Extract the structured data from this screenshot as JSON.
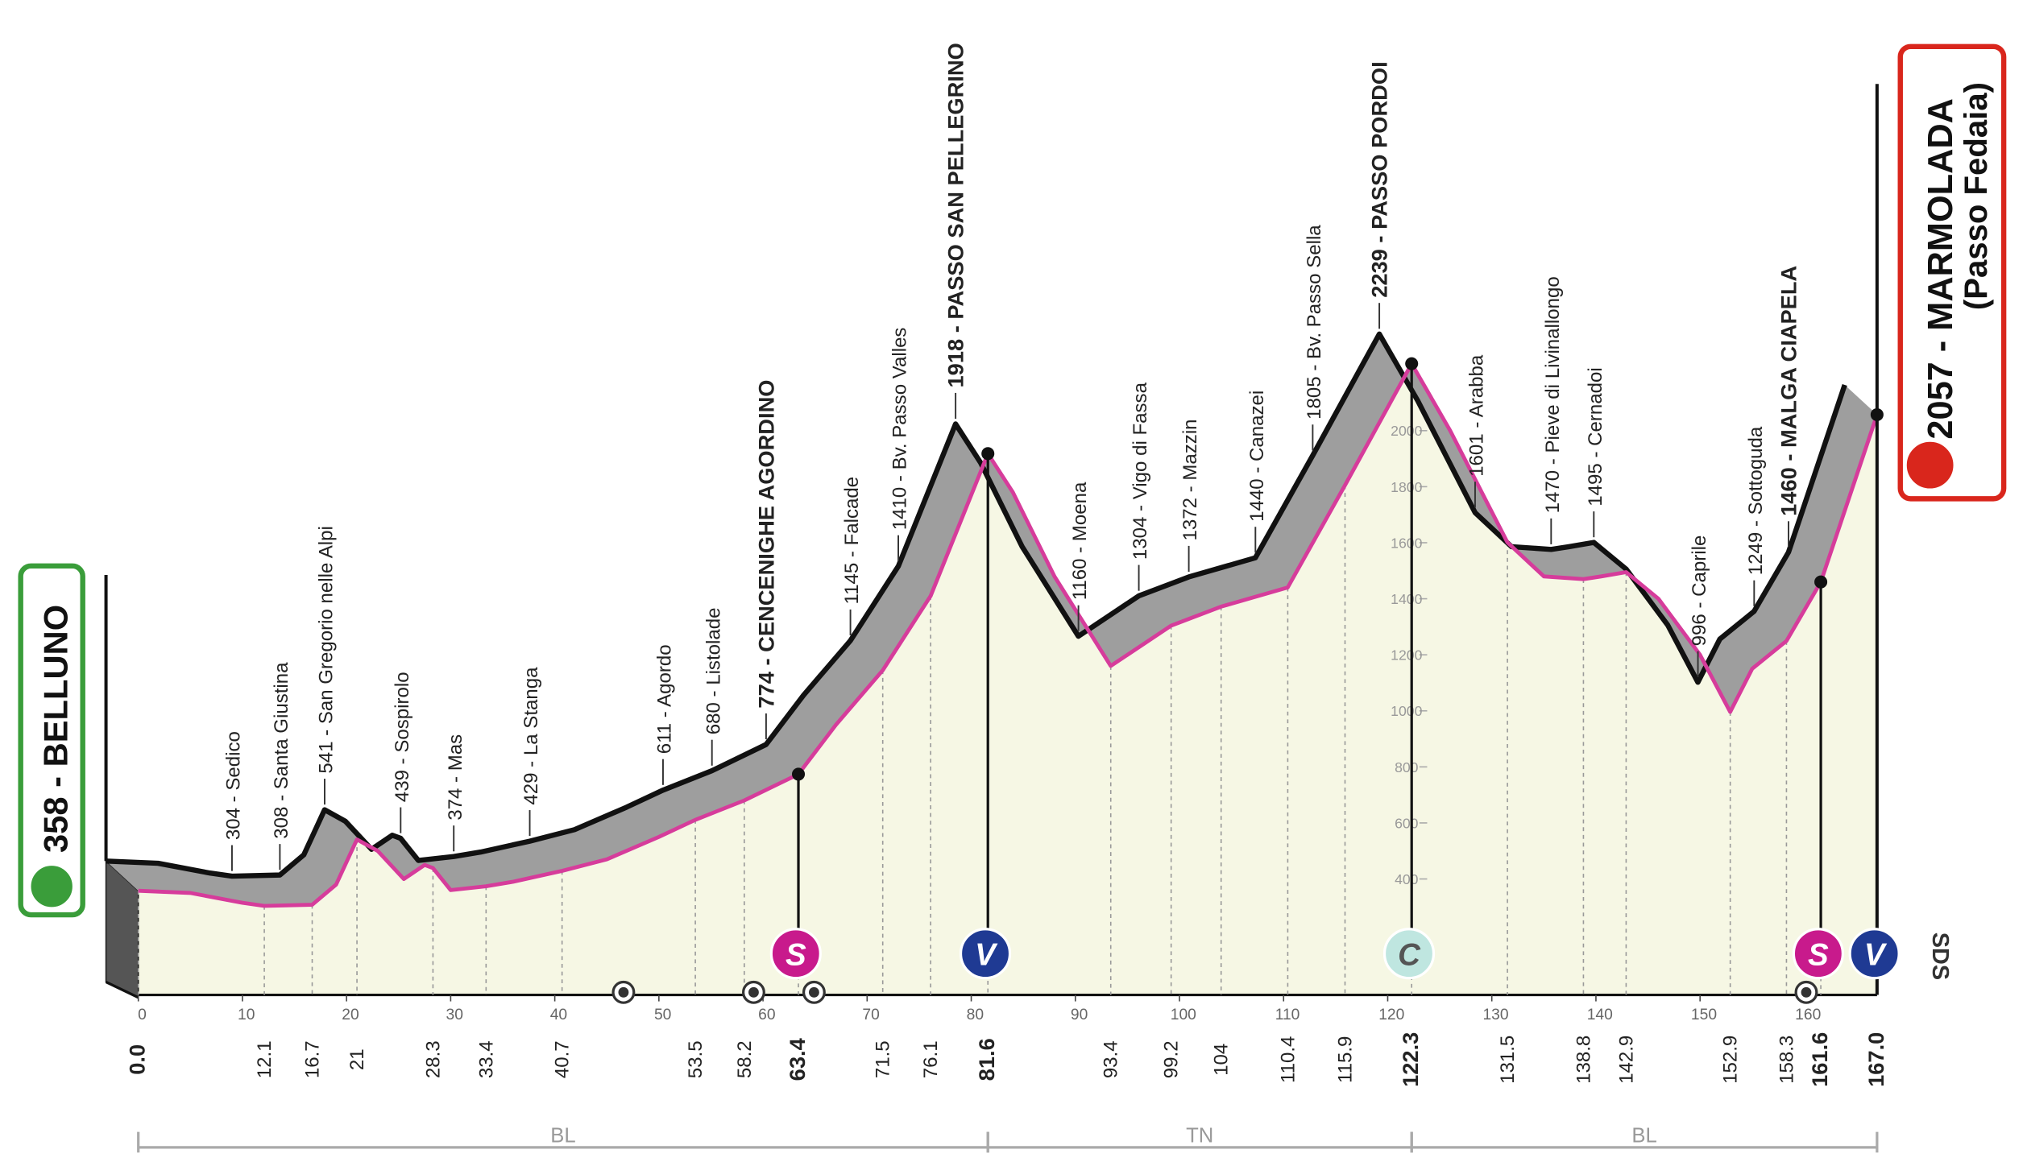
{
  "chart_data": {
    "type": "profile",
    "start": {
      "label": "358 - BELLUNO",
      "color": "#3a9d3a"
    },
    "finish": {
      "label": "2057 - MARMOLADA",
      "sublabel": "(Passo Fedaia)",
      "color": "#d9261c"
    },
    "xlim": [
      0,
      167
    ],
    "xticks": [
      0,
      10,
      20,
      30,
      40,
      50,
      60,
      70,
      80,
      90,
      100,
      110,
      120,
      130,
      140,
      150,
      160
    ],
    "ylim": [
      0,
      3500
    ],
    "yticks": [
      400,
      600,
      800,
      1000,
      1200,
      1400,
      1600,
      1800,
      2000
    ],
    "profile": {
      "km": [
        0,
        5,
        10,
        12.1,
        16.7,
        19,
        21.0,
        23,
        25.5,
        27.5,
        28.3,
        30,
        33.4,
        36,
        40.7,
        45,
        50,
        53.5,
        58.2,
        63.4,
        67,
        71.5,
        76.1,
        81.6,
        84,
        88,
        93.4,
        95,
        99.2,
        104.0,
        110.4,
        115.9,
        122.3,
        126,
        131.5,
        135,
        138.8,
        140.5,
        142.9,
        146,
        150,
        152.9,
        155,
        158.3,
        161.6,
        167.0
      ],
      "elevation": [
        358,
        350,
        315,
        304,
        308,
        380,
        541,
        500,
        400,
        450,
        439,
        360,
        374,
        390,
        429,
        470,
        550,
        611,
        680,
        774,
        950,
        1145,
        1410,
        1918,
        1780,
        1480,
        1160,
        1200,
        1304,
        1372,
        1440,
        1805,
        2239,
        2000,
        1601,
        1480,
        1470,
        1480,
        1495,
        1400,
        1200,
        996,
        1150,
        1249,
        1460,
        2057
      ],
      "color": "#d63c9b",
      "surface_color": "#9e9e9e",
      "ground_color": "#f6f7e4"
    },
    "stations": [
      {
        "km": {
          "value": 0,
          "label": "0.0"
        },
        "bold": true
      },
      {
        "km": 12.1,
        "name": "304 - Sedico"
      },
      {
        "km": 16.7,
        "name": "308 - Santa Giustina"
      },
      {
        "km": 21.0,
        "name": "541 - San Gregorio nelle Alpi"
      },
      {
        "km": 28.3,
        "name": "439 - Sospirolo"
      },
      {
        "km": 33.4,
        "name": "374 - Mas"
      },
      {
        "km": 40.7,
        "name": "429 - La Stanga"
      },
      {
        "km": 53.5,
        "name": "611 - Agordo"
      },
      {
        "km": 58.2,
        "name": "680 - Listolade"
      },
      {
        "km": 63.4,
        "name": "774 - CENCENIGHE AGORDINO",
        "bold": true
      },
      {
        "km": 71.5,
        "name": "1145 - Falcade"
      },
      {
        "km": 76.1,
        "name": "1410 - Bv. Passo Valles"
      },
      {
        "km": 81.6,
        "name": "1918 - PASSO SAN PELLEGRINO",
        "bold": true
      },
      {
        "km": 93.4,
        "name": "1160 - Moena"
      },
      {
        "km": 99.2,
        "name": "1304 - Vigo di Fassa"
      },
      {
        "km": 104.0,
        "name": "1372 - Mazzin"
      },
      {
        "km": 110.4,
        "name": "1440 - Canazei"
      },
      {
        "km": 115.9,
        "name": "1805 - Bv. Passo Sella"
      },
      {
        "km": 122.3,
        "name": "2239 - PASSO PORDOI",
        "bold": true
      },
      {
        "km": 131.5,
        "name": "1601 - Arabba"
      },
      {
        "km": 138.8,
        "name": "1470 - Pieve di Livinallongo"
      },
      {
        "km": 142.9,
        "name": "1495 - Cernadoi"
      },
      {
        "km": 152.9,
        "name": "996 - Caprile"
      },
      {
        "km": 158.3,
        "name": "1249 - Sottoguda"
      },
      {
        "km": 161.6,
        "name": "1460 - MALGA CIAPELA",
        "bold": true
      },
      {
        "km": {
          "value": 167.0,
          "label": "167.0"
        },
        "bold": true
      }
    ],
    "markers": [
      {
        "letter": "S",
        "km": 63.4,
        "color": "#c81a8c",
        "letter_color": "#ffffff"
      },
      {
        "letter": "V",
        "km": 81.6,
        "color": "#1f3a93",
        "letter_color": "#ffffff"
      },
      {
        "letter": "C",
        "km": 122.3,
        "color": "#bfe6e0",
        "letter_color": "#555555"
      },
      {
        "letter": "S",
        "km": 161.6,
        "color": "#c81a8c",
        "letter_color": "#ffffff"
      },
      {
        "letter": "V",
        "km": 167.0,
        "color": "#1f3a93",
        "letter_color": "#ffffff"
      }
    ],
    "tunnels": [
      46.6,
      59.1,
      64.9,
      160.2
    ],
    "regions": [
      {
        "name": "BL",
        "from": 0,
        "to": 81.6
      },
      {
        "name": "TN",
        "from": 81.6,
        "to": 122.3
      },
      {
        "name": "BL",
        "from": 122.3,
        "to": 167.0
      }
    ],
    "logo": "SDS"
  }
}
